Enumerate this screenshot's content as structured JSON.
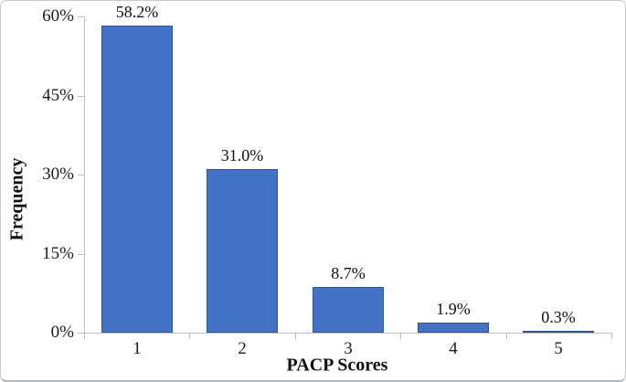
{
  "chart_data": {
    "type": "bar",
    "title": "",
    "xlabel": "PACP Scores",
    "ylabel": "Frequency",
    "categories": [
      "1",
      "2",
      "3",
      "4",
      "5"
    ],
    "values": [
      58.2,
      31.0,
      8.7,
      1.9,
      0.3
    ],
    "data_labels": [
      "58.2%",
      "31.0%",
      "8.7%",
      "1.9%",
      "0.3%"
    ],
    "ylim": [
      0,
      60
    ],
    "yticks": [
      0,
      15,
      30,
      45,
      60
    ],
    "ytick_labels": [
      "0%",
      "15%",
      "30%",
      "45%",
      "60%"
    ],
    "grid": false,
    "legend_position": "none",
    "colors": {
      "bar_fill": "#4472c4",
      "bar_border": "#2f5597",
      "axis": "#bfbfbf",
      "text": "#1c1c1c",
      "background": "#ffffff"
    }
  }
}
